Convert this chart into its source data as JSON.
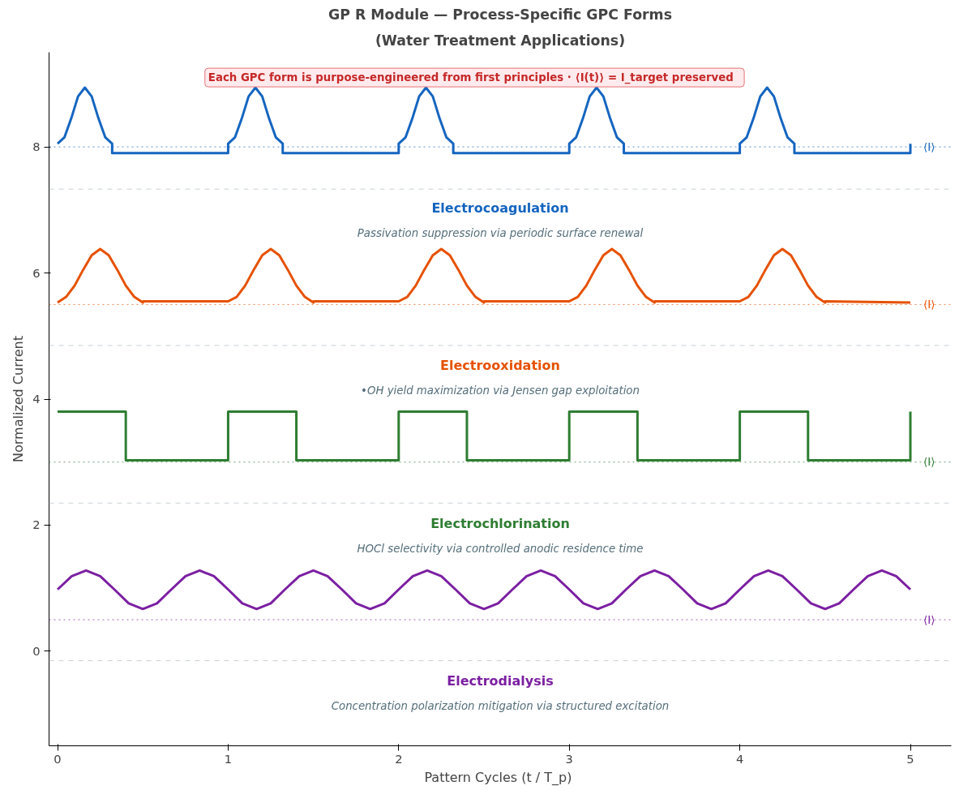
{
  "chart_data": {
    "type": "line",
    "title": "GP R Module — Process-Specific GPC Forms",
    "subtitle": "(Water Treatment Applications)",
    "xlabel": "Pattern Cycles  (t / T_p)",
    "ylabel": "Normalized Current",
    "xlim": [
      -0.05,
      5.24
    ],
    "ylim": [
      -1.5,
      9.5
    ],
    "xticks": [
      0,
      1,
      2,
      3,
      4,
      5
    ],
    "yticks": [
      0,
      2,
      4,
      6,
      8
    ],
    "grid": false,
    "legend": false,
    "line_style": "solid",
    "marker": "none",
    "series": [
      {
        "color": "#1565c0",
        "x": [
          0,
          0.04,
          0.08,
          0.12,
          0.16,
          0.2,
          0.24,
          0.28,
          0.32,
          0.32,
          1,
          1,
          1.04,
          1.08,
          1.12,
          1.16,
          1.2,
          1.24,
          1.28,
          1.32,
          1.32,
          2,
          2,
          2.04,
          2.08,
          2.12,
          2.16,
          2.2,
          2.24,
          2.28,
          2.32,
          2.32,
          3,
          3,
          3.04,
          3.08,
          3.12,
          3.16,
          3.2,
          3.24,
          3.28,
          3.32,
          3.32,
          4,
          4,
          4.04,
          4.08,
          4.12,
          4.16,
          4.2,
          4.24,
          4.28,
          4.32,
          4.32,
          5,
          5
        ],
        "values": [
          8.05,
          8.15,
          8.45,
          8.8,
          8.94,
          8.8,
          8.45,
          8.15,
          8.05,
          7.9,
          7.9,
          8.05,
          8.15,
          8.45,
          8.8,
          8.94,
          8.8,
          8.45,
          8.15,
          8.05,
          7.9,
          7.9,
          8.05,
          8.15,
          8.45,
          8.8,
          8.94,
          8.8,
          8.45,
          8.15,
          8.05,
          7.9,
          7.9,
          8.05,
          8.15,
          8.45,
          8.8,
          8.94,
          8.8,
          8.45,
          8.15,
          8.05,
          7.9,
          7.9,
          8.05,
          8.15,
          8.45,
          8.8,
          8.94,
          8.8,
          8.45,
          8.15,
          8.05,
          7.9,
          7.9,
          8.05
        ]
      },
      {
        "color": "#e65100",
        "x": [
          0,
          0.05,
          0.1,
          0.15,
          0.2,
          0.25,
          0.3,
          0.35,
          0.4,
          0.45,
          0.5,
          0.5,
          1,
          1.05,
          1.1,
          1.15,
          1.2,
          1.25,
          1.3,
          1.35,
          1.4,
          1.45,
          1.5,
          1.5,
          2,
          2.05,
          2.1,
          2.15,
          2.2,
          2.25,
          2.3,
          2.35,
          2.4,
          2.45,
          2.5,
          2.5,
          3,
          3.05,
          3.1,
          3.15,
          3.2,
          3.25,
          3.3,
          3.35,
          3.4,
          3.45,
          3.5,
          3.5,
          4,
          4.05,
          4.1,
          4.15,
          4.2,
          4.25,
          4.3,
          4.35,
          4.4,
          4.45,
          4.5,
          4.5,
          5
        ],
        "values": [
          5.53,
          5.62,
          5.8,
          6.05,
          6.28,
          6.38,
          6.28,
          6.05,
          5.8,
          5.62,
          5.53,
          5.55,
          5.55,
          5.62,
          5.8,
          6.05,
          6.28,
          6.38,
          6.28,
          6.05,
          5.8,
          5.62,
          5.53,
          5.55,
          5.55,
          5.62,
          5.8,
          6.05,
          6.28,
          6.38,
          6.28,
          6.05,
          5.8,
          5.62,
          5.53,
          5.55,
          5.55,
          5.62,
          5.8,
          6.05,
          6.28,
          6.38,
          6.28,
          6.05,
          5.8,
          5.62,
          5.53,
          5.55,
          5.55,
          5.62,
          5.8,
          6.05,
          6.28,
          6.38,
          6.28,
          6.05,
          5.8,
          5.62,
          5.53,
          5.55,
          5.53
        ]
      },
      {
        "color": "#2e7d32",
        "x": [
          0,
          0.4,
          0.4,
          1,
          1,
          1.4,
          1.4,
          2,
          2,
          2.4,
          2.4,
          3,
          3,
          3.4,
          3.4,
          4,
          4,
          4.4,
          4.4,
          5,
          5
        ],
        "values": [
          3.8,
          3.8,
          3.03,
          3.03,
          3.8,
          3.8,
          3.03,
          3.03,
          3.8,
          3.8,
          3.03,
          3.03,
          3.8,
          3.8,
          3.03,
          3.03,
          3.8,
          3.8,
          3.03,
          3.03,
          3.8
        ]
      },
      {
        "color": "#7b1fa2",
        "x": [
          0,
          0.083,
          0.167,
          0.25,
          0.333,
          0.417,
          0.5,
          0.583,
          0.667,
          0.75,
          0.833,
          0.917,
          1,
          1.083,
          1.167,
          1.25,
          1.333,
          1.417,
          1.5,
          1.583,
          1.667,
          1.75,
          1.833,
          1.917,
          2,
          2.083,
          2.167,
          2.25,
          2.333,
          2.417,
          2.5,
          2.583,
          2.667,
          2.75,
          2.833,
          2.917,
          3,
          3.083,
          3.167,
          3.25,
          3.333,
          3.417,
          3.5,
          3.583,
          3.667,
          3.75,
          3.833,
          3.917,
          4,
          4.083,
          4.167,
          4.25,
          4.333,
          4.417,
          4.5,
          4.583,
          4.667,
          4.75,
          4.833,
          4.917,
          5
        ],
        "values": [
          0.98,
          1.19,
          1.28,
          1.19,
          0.98,
          0.76,
          0.67,
          0.76,
          0.98,
          1.19,
          1.28,
          1.19,
          0.98,
          0.76,
          0.67,
          0.76,
          0.98,
          1.19,
          1.28,
          1.19,
          0.98,
          0.76,
          0.67,
          0.76,
          0.98,
          1.19,
          1.28,
          1.19,
          0.98,
          0.76,
          0.67,
          0.76,
          0.98,
          1.19,
          1.28,
          1.19,
          0.98,
          0.76,
          0.67,
          0.76,
          0.98,
          1.19,
          1.28,
          1.19,
          0.98,
          0.76,
          0.67,
          0.76,
          0.98,
          1.19,
          1.28,
          1.19,
          0.98,
          0.76,
          0.67,
          0.76,
          0.98,
          1.19,
          1.28,
          1.19,
          0.98
        ]
      }
    ],
    "ref_lines": [
      {
        "axis": "y",
        "value": 8.0,
        "label": "⟨I⟩",
        "color": "#1565c0",
        "line_style": "dotted"
      },
      {
        "axis": "y",
        "value": 5.5,
        "label": "⟨I⟩",
        "color": "#e65100",
        "line_style": "dotted"
      },
      {
        "axis": "y",
        "value": 3.0,
        "label": "⟨I⟩",
        "color": "#2e7d32",
        "line_style": "dotted"
      },
      {
        "axis": "y",
        "value": 0.5,
        "label": "⟨I⟩",
        "color": "#7b1fa2",
        "line_style": "dotted"
      },
      {
        "axis": "y",
        "value": 7.33,
        "color": "#b0bec5",
        "line_style": "dashed"
      },
      {
        "axis": "y",
        "value": 4.85,
        "color": "#b0bec5",
        "line_style": "dashed"
      },
      {
        "axis": "y",
        "value": 2.35,
        "color": "#b0bec5",
        "line_style": "dashed"
      },
      {
        "axis": "y",
        "value": -0.15,
        "color": "#b0bec5",
        "line_style": "dashed"
      }
    ],
    "annotations": [
      "Each GPC form is purpose-engineered from first principles  ·  ⟨I(t)⟩ = I_target preserved",
      "Electrocoagulation",
      "Passivation suppression via periodic surface renewal",
      "Electrooxidation",
      "•OH yield maximization via Jensen gap exploitation",
      "Electrochlorination",
      "HOCl selectivity via controlled anodic residence time",
      "Electrodialysis",
      "Concentration polarization mitigation via structured excitation"
    ]
  }
}
